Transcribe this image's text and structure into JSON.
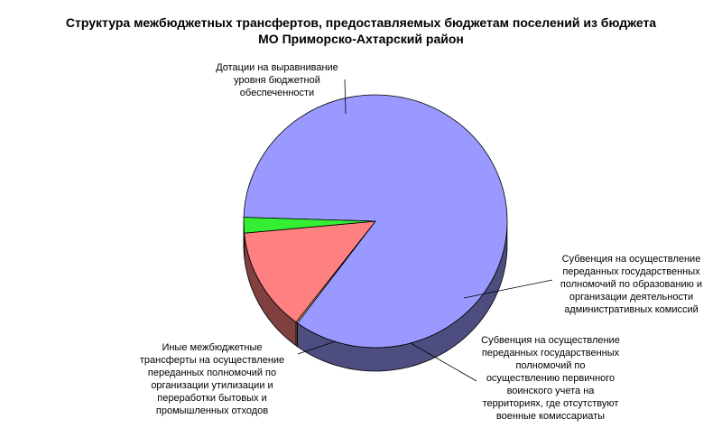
{
  "chart_data": {
    "type": "pie",
    "title_lines": [
      "Структура межбюджетных трансфертов, предоставляемых бюджетам поселений из бюджета",
      "МО Приморско-Ахтарский район"
    ],
    "slices": [
      {
        "label": "Дотации на выравнивание\nуровня бюджетной\nобеспеченности",
        "value": 84.6,
        "color": "#9999ff",
        "side_color": "#4d4d80"
      },
      {
        "label": "Субвенция на осуществление\nпереданных государственных\nполномочий по образованию и\nорганизации деятельности\nадминистративных комиссий",
        "value": 0.2,
        "color": "#ffcc66",
        "side_color": "#806633"
      },
      {
        "label": "Субвенция на осуществление\nпереданных государственных\nполномочий по\nосуществлению первичного\nвоинского учета на\nтерриториях, где отсутствуют\nвоенные комиссариаты",
        "value": 13.2,
        "color": "#ff8080",
        "side_color": "#804040"
      },
      {
        "label": "Иные межбюджетные\nтрансферты на осуществление\nпереданных полномочий по\nорганизации утилизации и\nпереработки бытовых и\nпромышленных отходов",
        "value": 2.0,
        "color": "#33ee33",
        "side_color": "#11a011"
      }
    ]
  }
}
